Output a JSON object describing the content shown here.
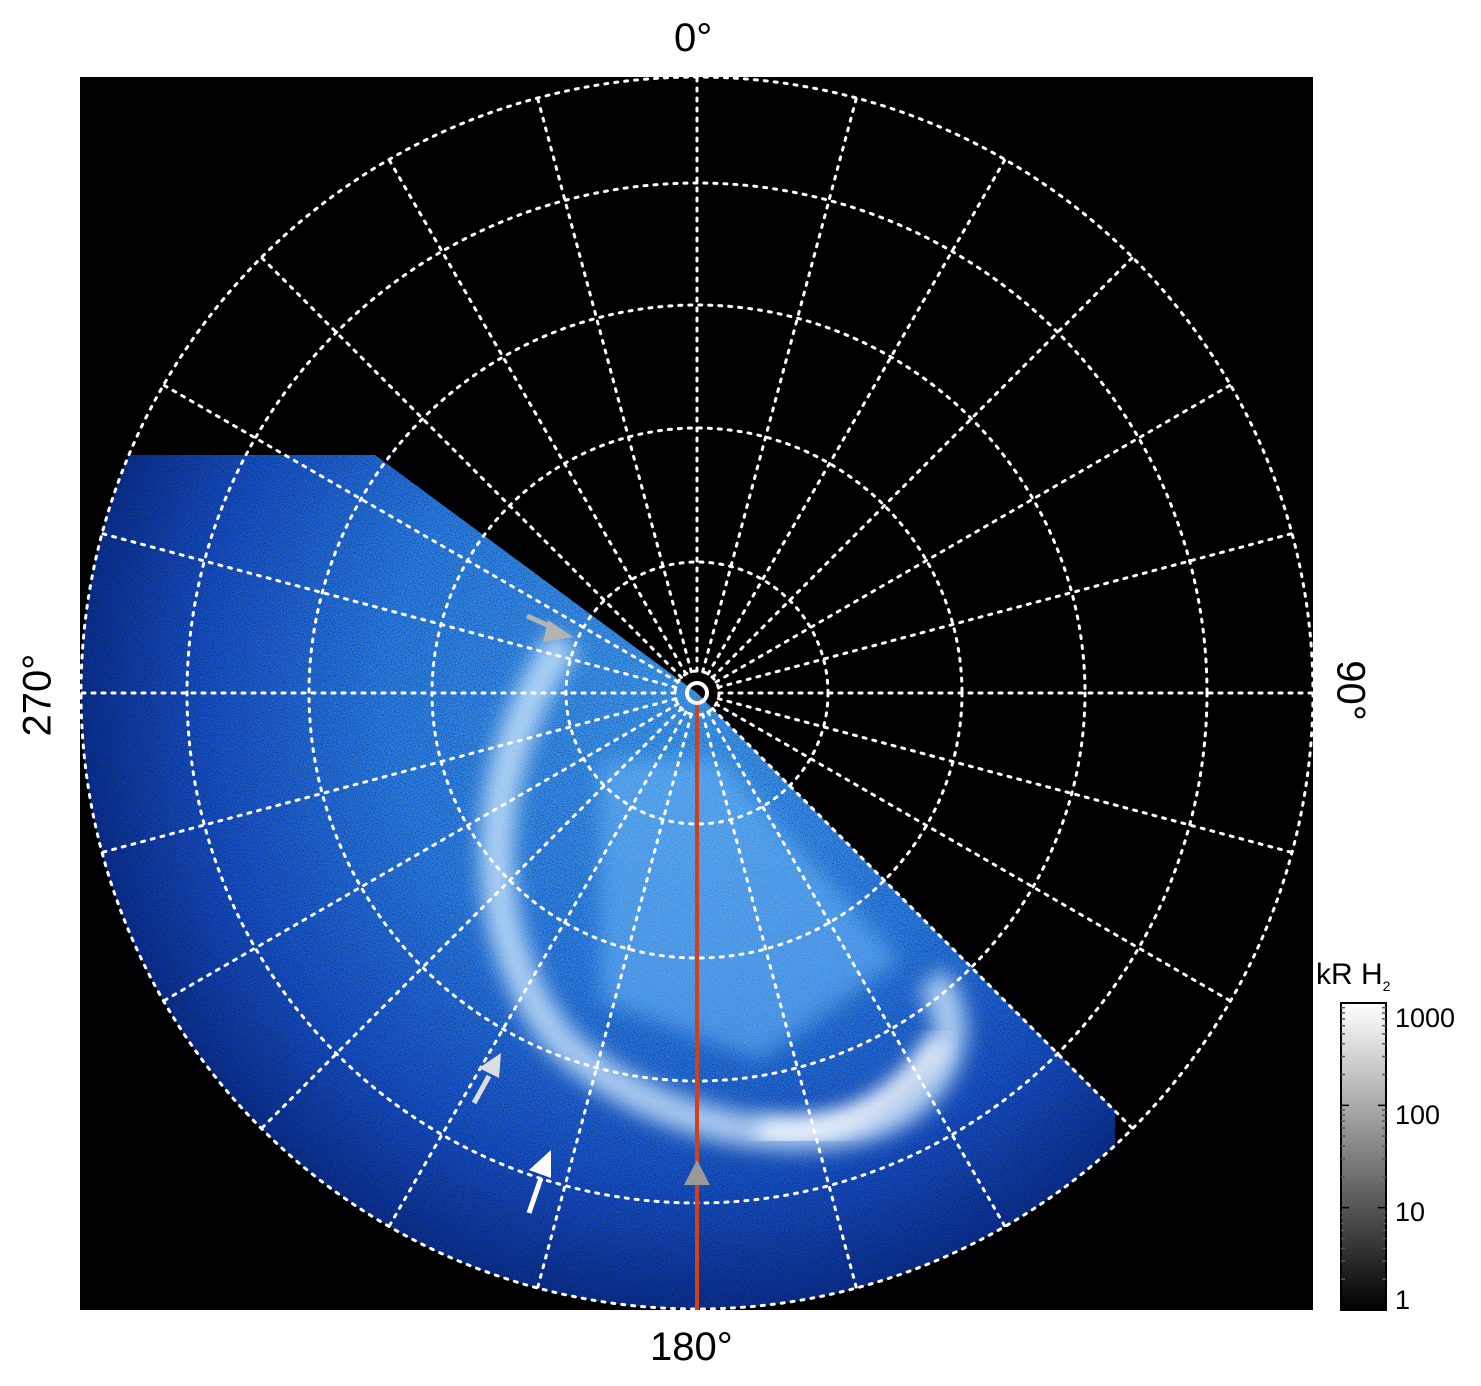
{
  "map": {
    "labels": {
      "top": "0°",
      "right": "90°",
      "bottom": "180°",
      "left": "270°"
    },
    "colors": {
      "background": "#000000",
      "grid": "#ffffff",
      "meridian_line": "#d2401a",
      "emission_dark": "#0a3fbf",
      "emission_mid": "#2f86ee",
      "emission_bright": "#ffffff",
      "arrow_gray": "#b4b4b4"
    }
  },
  "colorbar": {
    "title": "kR H",
    "title_subscript": "2",
    "ticks": [
      "1000",
      "100",
      "10",
      "1"
    ],
    "scale": "log",
    "range": [
      1,
      1000
    ]
  }
}
